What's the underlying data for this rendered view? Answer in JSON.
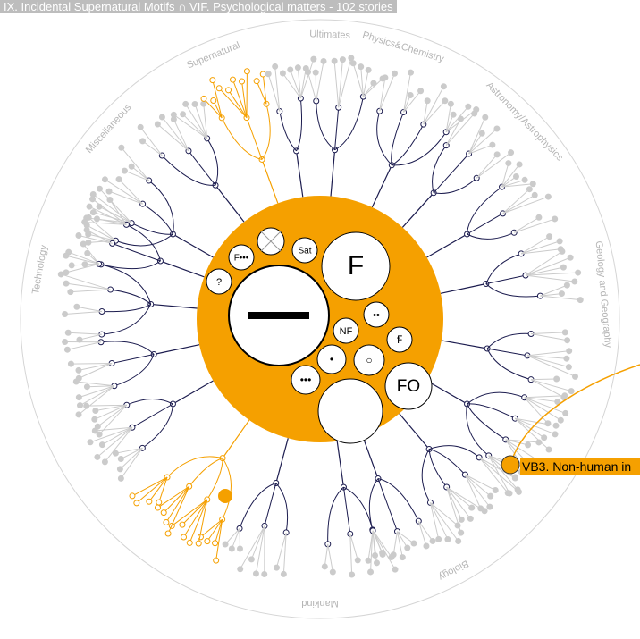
{
  "header": {
    "title": "IX. Incidental Supernatural Motifs ∩ VIF. Psychological matters - 102 stories"
  },
  "categories": [
    {
      "label": "Supernatural"
    },
    {
      "label": "Ultimates"
    },
    {
      "label": "Physics&Chemistry"
    },
    {
      "label": "Astronomy/Astrophysics"
    },
    {
      "label": "Geology and Geography"
    },
    {
      "label": "Biology"
    },
    {
      "label": "Mankind"
    },
    {
      "label": "Technology"
    },
    {
      "label": "Miscellaneous"
    }
  ],
  "bubbles": [
    {
      "label": "?"
    },
    {
      "label": "F•••"
    },
    {
      "label": "Sat"
    },
    {
      "label": "F"
    },
    {
      "label": "NF"
    },
    {
      "label": "••"
    },
    {
      "label": "Ꞙ"
    },
    {
      "label": "•"
    },
    {
      "label": "○"
    },
    {
      "label": "•••"
    },
    {
      "label": "FO"
    }
  ],
  "tooltip": {
    "label": "VB3. Non-human in"
  }
}
